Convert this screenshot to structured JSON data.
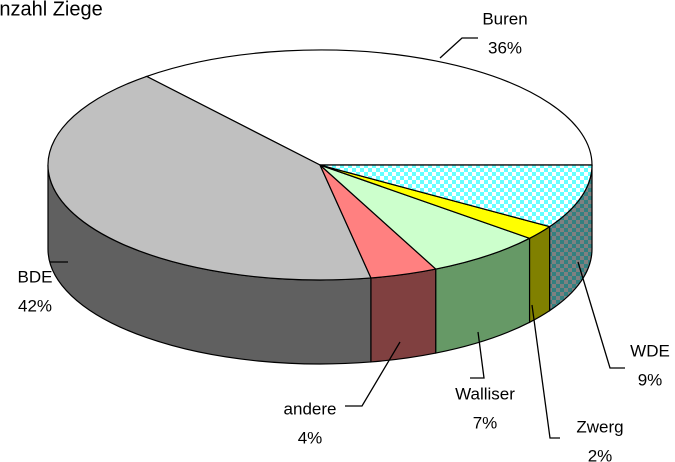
{
  "chart_data": {
    "type": "pie3d",
    "title": "Anzahl Ziege",
    "categories": [
      "Buren",
      "BDE",
      "andere",
      "Walliser",
      "Zwerg",
      "WDE"
    ],
    "values": [
      36,
      42,
      4,
      7,
      2,
      9
    ],
    "value_labels": [
      "36%",
      "42%",
      "4%",
      "7%",
      "2%",
      "9%"
    ],
    "colors": [
      "#ffffff",
      "#c0c0c0",
      "#ff8080",
      "#ccffcc",
      "#ffff00",
      "#99ffff"
    ]
  }
}
